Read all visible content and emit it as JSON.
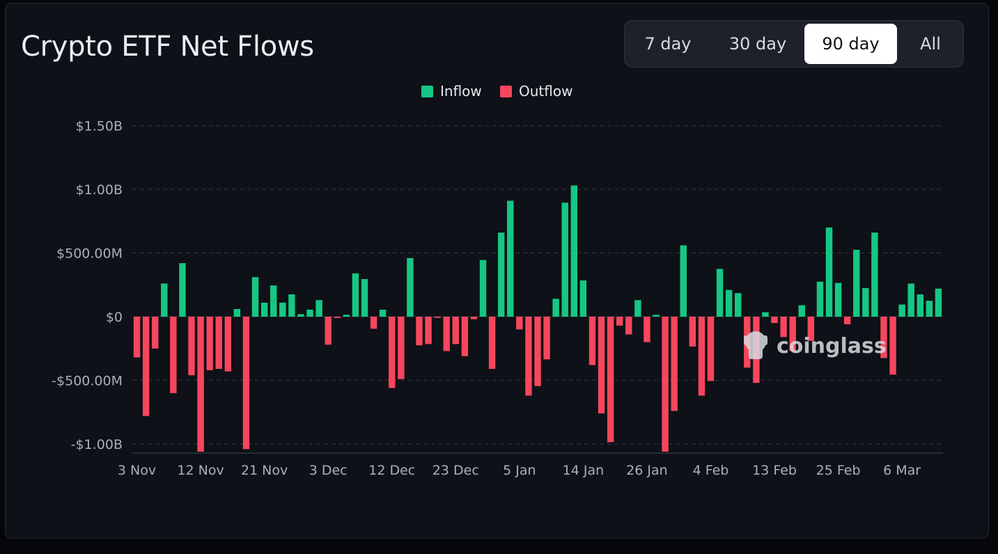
{
  "header": {
    "title": "Crypto ETF Net Flows",
    "ranges": [
      {
        "label": "7 day",
        "active": false
      },
      {
        "label": "30 day",
        "active": false
      },
      {
        "label": "90 day",
        "active": true
      },
      {
        "label": "All",
        "active": false
      }
    ]
  },
  "watermark": {
    "text": "coinglass",
    "icon": "coinglass-logo-icon"
  },
  "colors": {
    "inflow": "#16c784",
    "outflow": "#f6465d",
    "background": "#0e1117",
    "grid": "#2e323b",
    "axis_text": "#aab0bb"
  },
  "chart_data": {
    "type": "bar",
    "title": "",
    "xlabel": "",
    "ylabel": "",
    "legend": {
      "position": "top-center",
      "entries": [
        "Inflow",
        "Outflow"
      ]
    },
    "series": [
      {
        "name": "Inflow",
        "color": "#16c784"
      },
      {
        "name": "Outflow",
        "color": "#f6465d"
      }
    ],
    "ylim": [
      -1050,
      1550
    ],
    "y_unit": "M USD",
    "grid": true,
    "y_ticks": [
      {
        "value": 1500,
        "label": "$1.50B"
      },
      {
        "value": 1000,
        "label": "$1.00B"
      },
      {
        "value": 500,
        "label": "$500.00M"
      },
      {
        "value": 0,
        "label": "$0"
      },
      {
        "value": -500,
        "label": "-$500.00M"
      },
      {
        "value": -1000,
        "label": "-$1.00B"
      }
    ],
    "x_ticks": [
      {
        "index": 0,
        "label": "3 Nov"
      },
      {
        "index": 7,
        "label": "12 Nov"
      },
      {
        "index": 14,
        "label": "21 Nov"
      },
      {
        "index": 21,
        "label": "3 Dec"
      },
      {
        "index": 28,
        "label": "12 Dec"
      },
      {
        "index": 35,
        "label": "23 Dec"
      },
      {
        "index": 42,
        "label": "5 Jan"
      },
      {
        "index": 49,
        "label": "14 Jan"
      },
      {
        "index": 56,
        "label": "26 Jan"
      },
      {
        "index": 63,
        "label": "4 Feb"
      },
      {
        "index": 70,
        "label": "13 Feb"
      },
      {
        "index": 77,
        "label": "25 Feb"
      },
      {
        "index": 84,
        "label": "6 Mar"
      }
    ],
    "values": [
      -320,
      -780,
      -250,
      260,
      -600,
      420,
      -460,
      -1060,
      -420,
      -410,
      -430,
      60,
      -1040,
      310,
      110,
      245,
      110,
      175,
      20,
      55,
      130,
      -220,
      -10,
      15,
      340,
      295,
      -95,
      55,
      -560,
      -490,
      460,
      -225,
      -215,
      -10,
      -270,
      -215,
      -310,
      -20,
      445,
      -410,
      660,
      910,
      -100,
      -620,
      -545,
      -335,
      140,
      895,
      1030,
      285,
      -380,
      -760,
      -985,
      -70,
      -140,
      130,
      -200,
      15,
      -1060,
      -740,
      560,
      -235,
      -620,
      -505,
      375,
      210,
      185,
      -400,
      -520,
      35,
      -50,
      -160,
      -270,
      90,
      -190,
      275,
      700,
      265,
      -60,
      525,
      225,
      660,
      -325,
      -455,
      95,
      260,
      175,
      125,
      220
    ]
  }
}
